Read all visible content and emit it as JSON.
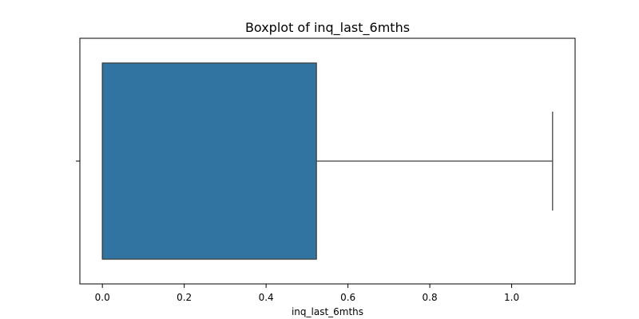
{
  "chart_data": {
    "type": "box",
    "title": "Boxplot of inq_last_6mths",
    "xlabel": "inq_last_6mths",
    "ylabel": "",
    "orientation": "horizontal",
    "xlim": [
      -0.055,
      1.155
    ],
    "x_ticks": [
      0.0,
      0.2,
      0.4,
      0.6,
      0.8,
      1.0
    ],
    "x_tick_labels": [
      "0.0",
      "0.2",
      "0.4",
      "0.6",
      "0.8",
      "1.0"
    ],
    "grid": false,
    "box": {
      "min": 0.0,
      "q1": 0.0,
      "median": 0.0,
      "q3": 0.523,
      "max": 1.1,
      "fill_color": "#3274a1",
      "edge_color": "#3d3d3d"
    }
  }
}
